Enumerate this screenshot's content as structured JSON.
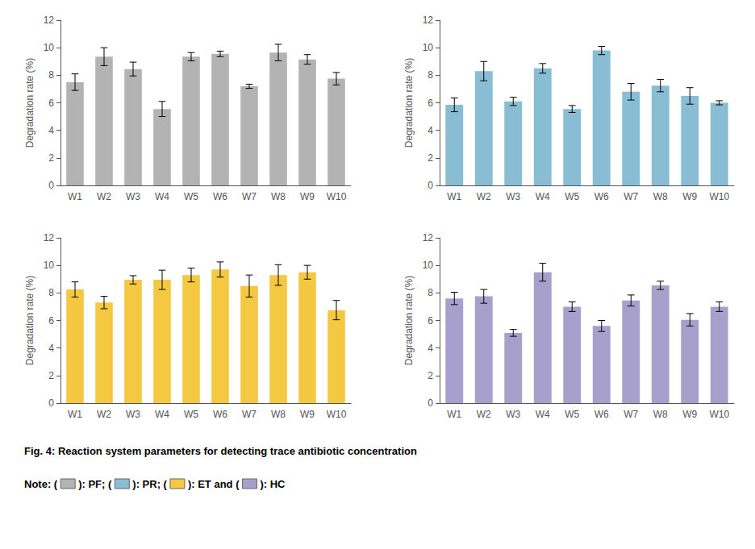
{
  "title": "Fig. 4: Reaction system parameters for detecting trace antibiotic concentration",
  "annotations": [
    "Note: (",
    "): PF; (",
    "): PR; (",
    "): ET and (",
    "): HC"
  ],
  "chart_data": [
    {
      "type": "bar",
      "categories": [
        "W1",
        "W2",
        "W3",
        "W4",
        "W5",
        "W6",
        "W7",
        "W8",
        "W9",
        "W10"
      ],
      "values": [
        7.5,
        9.35,
        8.45,
        5.55,
        9.35,
        9.55,
        7.2,
        9.65,
        9.15,
        7.75
      ],
      "errors": [
        0.6,
        0.65,
        0.5,
        0.55,
        0.3,
        0.2,
        0.15,
        0.6,
        0.35,
        0.45
      ],
      "color": "#b3b3b3",
      "ylabel": "Degradation rate (%)",
      "ylim": [
        0,
        12
      ],
      "yticks": [
        0,
        2,
        4,
        6,
        8,
        10,
        12
      ],
      "grid": false
    },
    {
      "type": "bar",
      "categories": [
        "W1",
        "W2",
        "W3",
        "W4",
        "W5",
        "W6",
        "W7",
        "W8",
        "W9",
        "W10"
      ],
      "values": [
        5.85,
        8.3,
        6.1,
        8.5,
        5.55,
        9.8,
        6.8,
        7.25,
        6.5,
        6.0
      ],
      "errors": [
        0.5,
        0.7,
        0.3,
        0.35,
        0.25,
        0.3,
        0.6,
        0.45,
        0.6,
        0.15
      ],
      "color": "#89bdd3",
      "ylabel": "Degradation rate (%)",
      "ylim": [
        0,
        12
      ],
      "yticks": [
        0,
        2,
        4,
        6,
        8,
        10,
        12
      ],
      "grid": false
    },
    {
      "type": "bar",
      "categories": [
        "W1",
        "W2",
        "W3",
        "W4",
        "W5",
        "W6",
        "W7",
        "W8",
        "W9",
        "W10"
      ],
      "values": [
        8.25,
        7.3,
        8.95,
        8.95,
        9.3,
        9.7,
        8.5,
        9.3,
        9.5,
        6.75
      ],
      "errors": [
        0.55,
        0.45,
        0.3,
        0.7,
        0.5,
        0.55,
        0.8,
        0.75,
        0.5,
        0.7
      ],
      "color": "#f5c842",
      "ylabel": "Degradation rate (%)",
      "ylim": [
        0,
        12
      ],
      "yticks": [
        0,
        2,
        4,
        6,
        8,
        10,
        12
      ],
      "grid": false
    },
    {
      "type": "bar",
      "categories": [
        "W1",
        "W2",
        "W3",
        "W4",
        "W5",
        "W6",
        "W7",
        "W8",
        "W9",
        "W10"
      ],
      "values": [
        7.6,
        7.75,
        5.1,
        9.5,
        7.0,
        5.6,
        7.45,
        8.55,
        6.05,
        7.0
      ],
      "errors": [
        0.45,
        0.5,
        0.25,
        0.65,
        0.35,
        0.4,
        0.4,
        0.3,
        0.45,
        0.35
      ],
      "color": "#a8a0cc",
      "ylabel": "Degradation rate (%)",
      "ylim": [
        0,
        12
      ],
      "yticks": [
        0,
        2,
        4,
        6,
        8,
        10,
        12
      ],
      "grid": false
    }
  ]
}
